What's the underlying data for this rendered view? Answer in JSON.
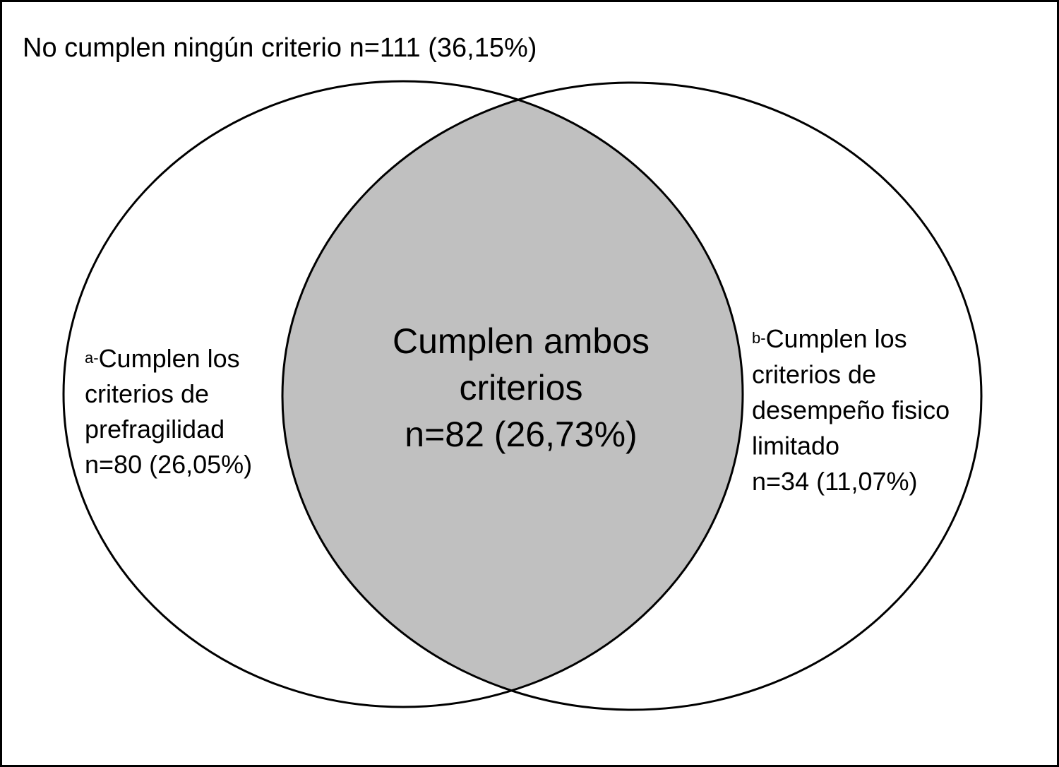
{
  "outside": {
    "label": "No cumplen ningún criterio n=111 (36,15%)"
  },
  "sets": [
    {
      "marker": "a-",
      "lines": [
        "Cumplen los",
        "criterios de",
        "prefragilidad",
        "n=80 (26,05%)"
      ]
    },
    {
      "marker": "b-",
      "lines": [
        "Cumplen los",
        "criterios de",
        "desempeño fisico",
        "limitado",
        "n=34 (11,07%)"
      ]
    }
  ],
  "intersection": {
    "lines": [
      "Cumplen ambos",
      "criterios",
      "n=82 (26,73%)"
    ]
  }
}
